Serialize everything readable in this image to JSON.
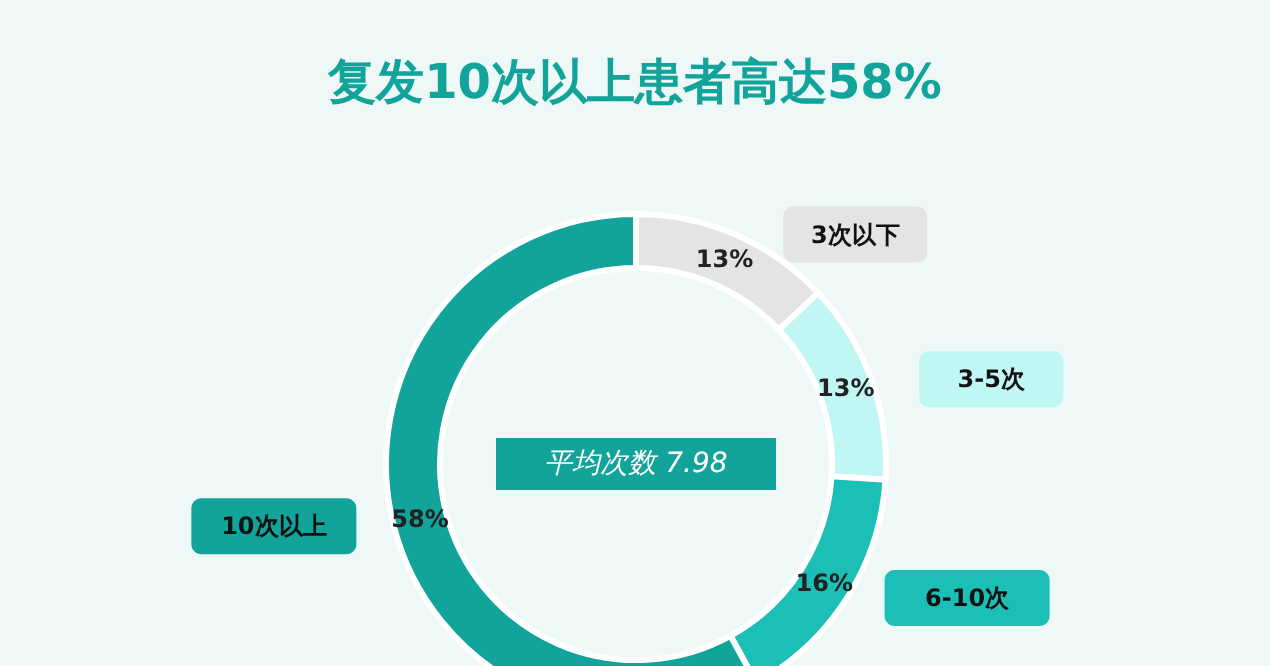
{
  "chart_data": {
    "type": "donut",
    "title": "复发10次以上患者高达58%",
    "categories": [
      "3次以下",
      "3-5次",
      "6-10次",
      "10次以上"
    ],
    "values": [
      13,
      13,
      16,
      58
    ],
    "colors": [
      "#e4e4e4",
      "#c0f6f3",
      "#1cbfb5",
      "#12a39a"
    ],
    "value_labels": [
      "13%",
      "13%",
      "16%",
      "58%"
    ],
    "annotations": [
      "平均次数 7.98"
    ]
  }
}
